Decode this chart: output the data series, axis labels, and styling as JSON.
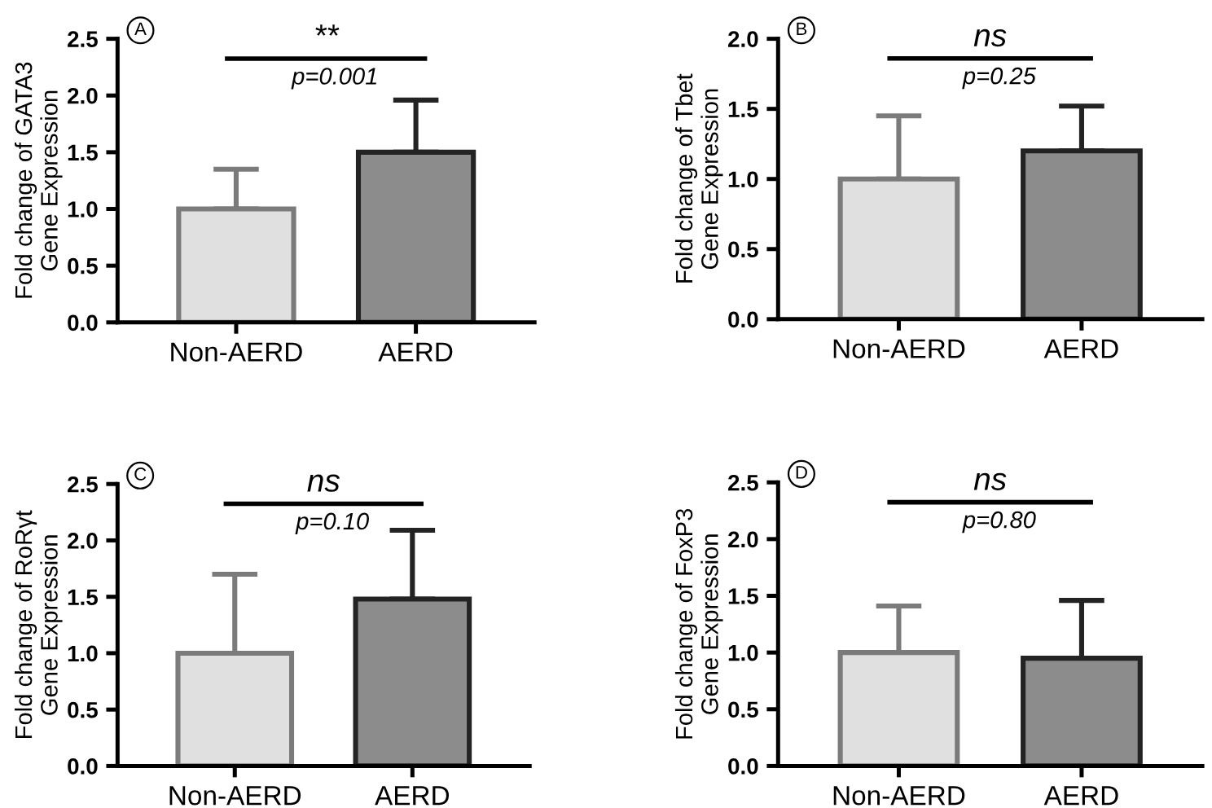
{
  "chart_data": [
    {
      "type": "bar",
      "title": "A",
      "ylabel": "Fold change of GATA3\nGene Expression",
      "categories": [
        "Non-AERD",
        "AERD"
      ],
      "values": [
        1.0,
        1.5
      ],
      "colors": [
        "#e0e0e0",
        "#8c8c8c"
      ],
      "errors": [
        [
          1.0,
          1.35
        ],
        [
          1.5,
          1.96
        ]
      ],
      "ylim": [
        0,
        2.5
      ],
      "yticks": [
        {
          "value": 0,
          "label": "0.0"
        },
        0.5,
        {
          "value": 1,
          "label": "1.0"
        },
        1.5,
        {
          "value": 2,
          "label": "2.0"
        },
        2.5
      ],
      "annotations": [
        "**",
        "p=0.001"
      ],
      "grid": false,
      "legend": false
    },
    {
      "type": "bar",
      "title": "B",
      "ylabel": "Fold change of Tbet\nGene Expression",
      "categories": [
        "Non-AERD",
        "AERD"
      ],
      "values": [
        1.0,
        1.2
      ],
      "colors": [
        "#e0e0e0",
        "#8c8c8c"
      ],
      "errors": [
        [
          1.0,
          1.45
        ],
        [
          1.2,
          1.52
        ]
      ],
      "ylim": [
        0,
        2.0
      ],
      "yticks": [
        {
          "value": 0,
          "label": "0.0"
        },
        0.5,
        {
          "value": 1,
          "label": "1.0"
        },
        1.5,
        {
          "value": 2,
          "label": "2.0"
        }
      ],
      "annotations": [
        "ns",
        "p=0.25"
      ],
      "grid": false,
      "legend": false
    },
    {
      "type": "bar",
      "title": "C",
      "ylabel": "Fold change of RoRγt\nGene Expression",
      "categories": [
        "Non-AERD",
        "AERD"
      ],
      "values": [
        1.0,
        1.48
      ],
      "colors": [
        "#e0e0e0",
        "#8c8c8c"
      ],
      "errors": [
        [
          1.0,
          1.7
        ],
        [
          1.48,
          2.09
        ]
      ],
      "ylim": [
        0,
        2.5
      ],
      "yticks": [
        {
          "value": 0,
          "label": "0.0"
        },
        0.5,
        {
          "value": 1,
          "label": "1.0"
        },
        1.5,
        {
          "value": 2,
          "label": "2.0"
        },
        2.5
      ],
      "annotations": [
        "ns",
        "p=0.10"
      ],
      "grid": false,
      "legend": false
    },
    {
      "type": "bar",
      "title": "D",
      "ylabel": "Fold change of FoxP3\nGene Expression",
      "categories": [
        "Non-AERD",
        "AERD"
      ],
      "values": [
        1.0,
        0.95
      ],
      "colors": [
        "#e0e0e0",
        "#8c8c8c"
      ],
      "errors": [
        [
          1.0,
          1.41
        ],
        [
          0.95,
          1.46
        ]
      ],
      "ylim": [
        0,
        2.5
      ],
      "yticks": [
        {
          "value": 0,
          "label": "0.0"
        },
        0.5,
        {
          "value": 1,
          "label": "1.0"
        },
        1.5,
        {
          "value": 2,
          "label": "2.0"
        },
        2.5
      ],
      "annotations": [
        "ns",
        "p=0.80"
      ],
      "grid": false,
      "legend": false
    }
  ]
}
